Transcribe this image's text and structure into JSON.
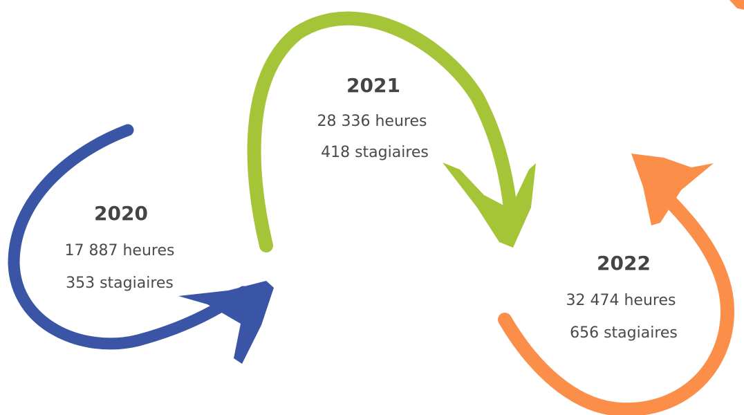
{
  "items": [
    {
      "year": "2020",
      "hours": "17 887 heures",
      "trainees": "353 stagiaires"
    },
    {
      "year": "2021",
      "hours": "28 336 heures",
      "trainees": "418 stagiaires"
    },
    {
      "year": "2022",
      "hours": "32 474 heures",
      "trainees": "656 stagiaires"
    }
  ]
}
